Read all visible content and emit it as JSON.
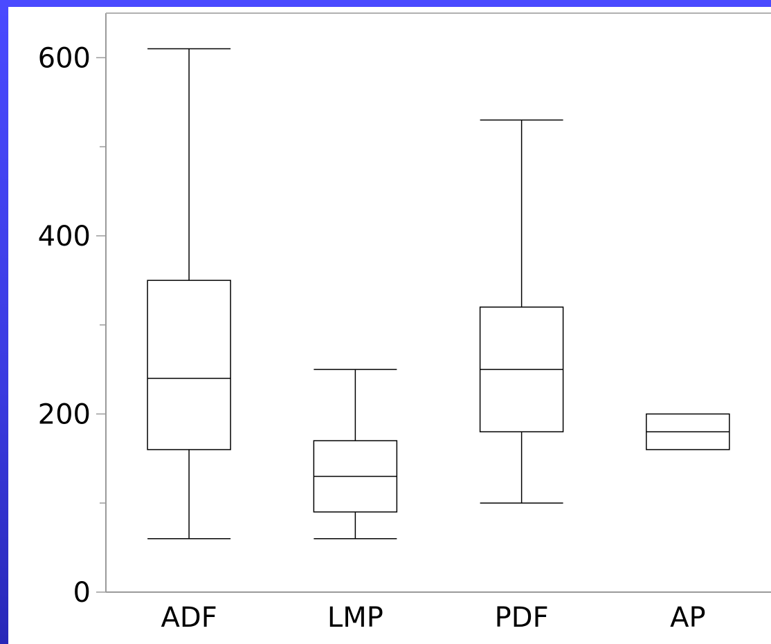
{
  "background": {
    "accent": "#4a4aff"
  },
  "chart_data": {
    "type": "boxplot",
    "title": "",
    "xlabel": "",
    "ylabel": "",
    "ylim": [
      0,
      650
    ],
    "yticks_major": [
      0,
      200,
      400,
      600
    ],
    "yticks_minor": [
      100,
      300,
      500
    ],
    "grid": false,
    "categories": [
      "ADF",
      "LMP",
      "PDF",
      "AP"
    ],
    "boxes": [
      {
        "label": "ADF",
        "min": 60,
        "q1": 160,
        "median": 240,
        "q3": 350,
        "max": 610
      },
      {
        "label": "LMP",
        "min": 60,
        "q1": 90,
        "median": 130,
        "q3": 170,
        "max": 250
      },
      {
        "label": "PDF",
        "min": 100,
        "q1": 180,
        "median": 250,
        "q3": 320,
        "max": 530
      },
      {
        "label": "AP",
        "min": 160,
        "q1": 160,
        "median": 180,
        "q3": 200,
        "max": 200
      }
    ]
  }
}
